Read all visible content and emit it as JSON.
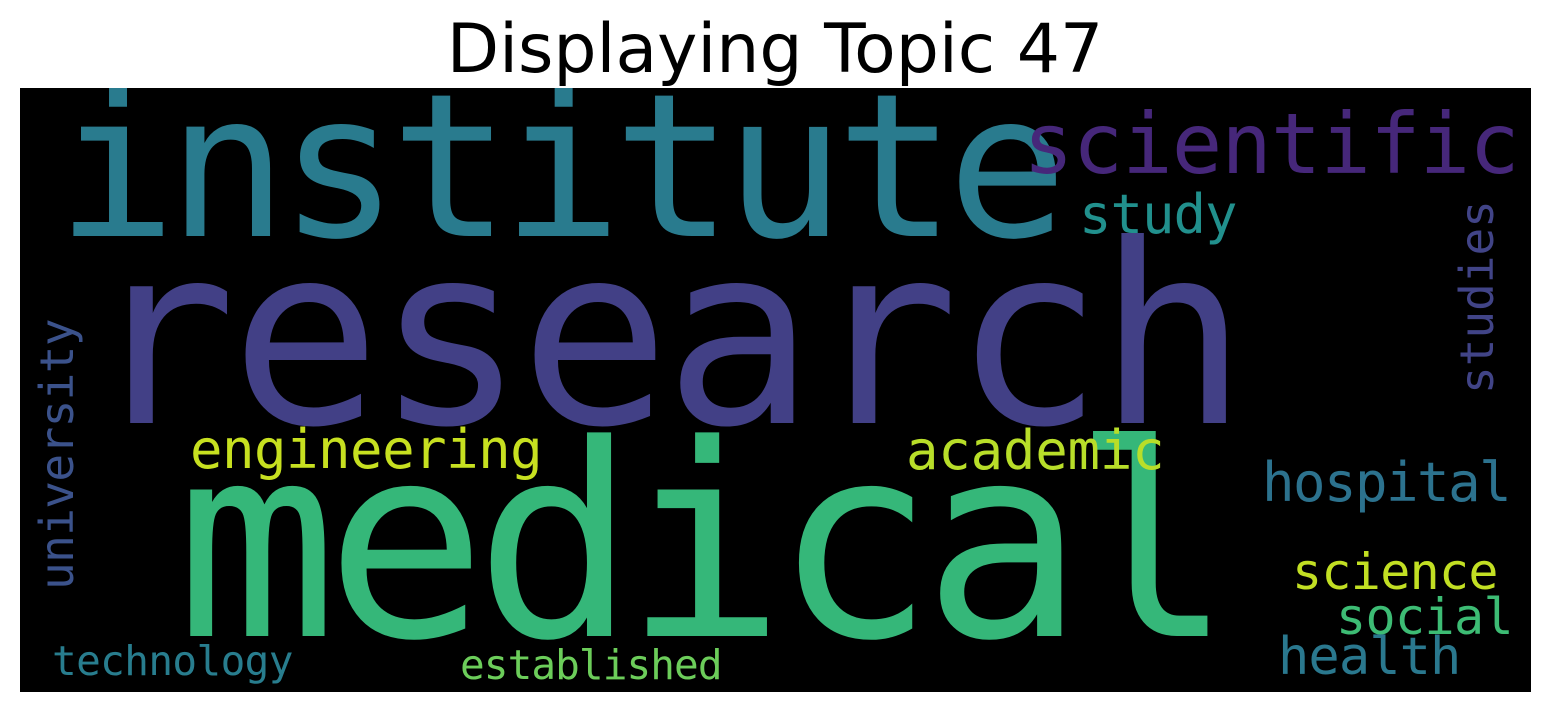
{
  "title": "Displaying Topic 47",
  "wordcloud": {
    "background": "#000000",
    "words": [
      {
        "text": "research",
        "color": "#424086",
        "orientation": "horizontal"
      },
      {
        "text": "institute",
        "color": "#297b8e",
        "orientation": "horizontal"
      },
      {
        "text": "medical",
        "color": "#35b779",
        "orientation": "horizontal"
      },
      {
        "text": "scientific",
        "color": "#46277a",
        "orientation": "horizontal"
      },
      {
        "text": "study",
        "color": "#21908d",
        "orientation": "horizontal"
      },
      {
        "text": "studies",
        "color": "#414487",
        "orientation": "vertical"
      },
      {
        "text": "university",
        "color": "#3b528b",
        "orientation": "vertical"
      },
      {
        "text": "engineering",
        "color": "#c7e020",
        "orientation": "horizontal"
      },
      {
        "text": "academic",
        "color": "#b8de29",
        "orientation": "horizontal"
      },
      {
        "text": "hospital",
        "color": "#2c728e",
        "orientation": "horizontal"
      },
      {
        "text": "science",
        "color": "#c2df23",
        "orientation": "horizontal"
      },
      {
        "text": "social",
        "color": "#3dbc74",
        "orientation": "horizontal"
      },
      {
        "text": "health",
        "color": "#2a788e",
        "orientation": "horizontal"
      },
      {
        "text": "technology",
        "color": "#287d8e",
        "orientation": "horizontal"
      },
      {
        "text": "established",
        "color": "#6ccd5a",
        "orientation": "horizontal"
      }
    ]
  }
}
